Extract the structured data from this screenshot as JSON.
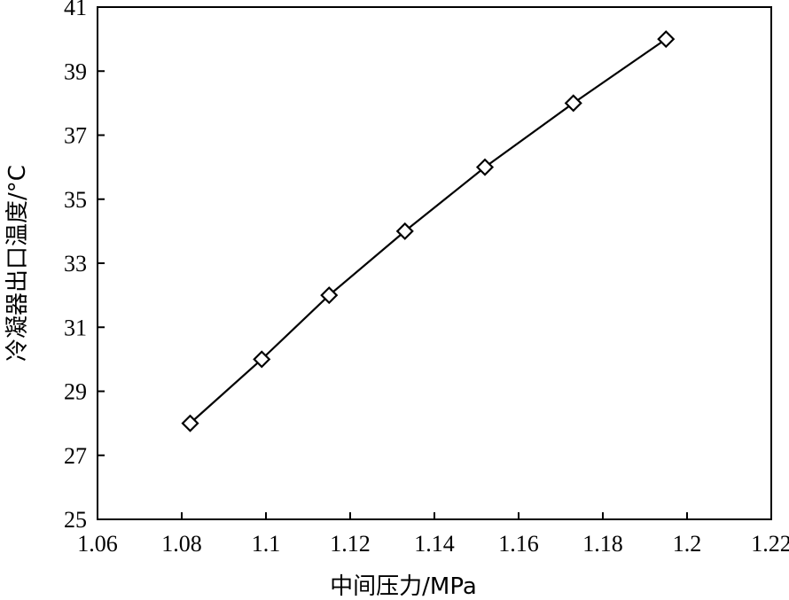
{
  "chart_data": {
    "type": "line",
    "title": "",
    "xlabel": "中间压力/MPa",
    "ylabel": "冷凝器出口温度/°C",
    "xlim": [
      1.06,
      1.22
    ],
    "ylim": [
      25,
      41
    ],
    "xticks": [
      1.06,
      1.08,
      1.1,
      1.12,
      1.14,
      1.16,
      1.18,
      1.2,
      1.22
    ],
    "xtick_labels": [
      "1.06",
      "1.08",
      "1.1",
      "1.12",
      "1.14",
      "1.16",
      "1.18",
      "1.2",
      "1.22"
    ],
    "yticks": [
      25,
      27,
      29,
      31,
      33,
      35,
      37,
      39,
      41
    ],
    "ytick_labels": [
      "25",
      "27",
      "29",
      "31",
      "33",
      "35",
      "37",
      "39",
      "41"
    ],
    "grid": false,
    "marker": "diamond",
    "series": [
      {
        "x": [
          1.082,
          1.099,
          1.115,
          1.133,
          1.152,
          1.173,
          1.195
        ],
        "y": [
          28,
          30,
          32,
          34,
          36,
          38,
          40
        ]
      }
    ]
  }
}
